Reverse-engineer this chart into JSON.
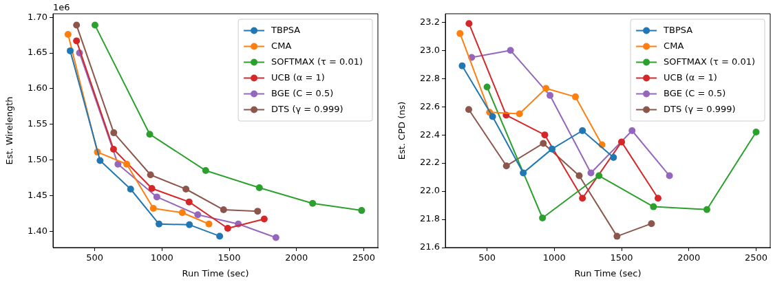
{
  "chart_data": [
    {
      "type": "line",
      "xlabel": "Run Time (sec)",
      "ylabel": "Est. Wirelength",
      "annotations": [
        "1e6"
      ],
      "xlim": [
        190,
        2605
      ],
      "xticks": [
        500,
        1000,
        1500,
        2000,
        2500
      ],
      "ylim": [
        1.377,
        1.705
      ],
      "yticks": [
        {
          "value": 1.4,
          "label": "1.40"
        },
        {
          "value": 1.45,
          "label": "1.45"
        },
        {
          "value": 1.5,
          "label": "1.50"
        },
        {
          "value": 1.55,
          "label": "1.55"
        },
        {
          "value": 1.6,
          "label": "1.60"
        },
        {
          "value": 1.65,
          "label": "1.65"
        },
        {
          "value": 1.7,
          "label": "1.70"
        }
      ],
      "grid": false,
      "legend": "top right",
      "marker": "circle",
      "line_style": "solid",
      "series": [
        {
          "name": "TBPSA",
          "color": "#1f77b4",
          "x": [
            318,
            540,
            767,
            978,
            1204,
            1429
          ],
          "values": [
            1.653,
            1.499,
            1.459,
            1.41,
            1.409,
            1.393
          ]
        },
        {
          "name": "CMA",
          "color": "#ff7f0e",
          "x": [
            302,
            520,
            738,
            936,
            1151,
            1349
          ],
          "values": [
            1.676,
            1.511,
            1.494,
            1.432,
            1.426,
            1.41
          ]
        },
        {
          "name": "SOFTMAX (τ = 0.01)",
          "color": "#2ca02c",
          "x": [
            502,
            909,
            1325,
            1724,
            2120,
            2484
          ],
          "values": [
            1.689,
            1.536,
            1.485,
            1.461,
            1.439,
            1.429
          ]
        },
        {
          "name": "UCB (α = 1)",
          "color": "#d62728",
          "x": [
            365,
            640,
            925,
            1202,
            1489,
            1760
          ],
          "values": [
            1.667,
            1.515,
            1.46,
            1.441,
            1.404,
            1.417
          ]
        },
        {
          "name": "BGE (C = 0.5)",
          "color": "#9467bd",
          "x": [
            387,
            673,
            962,
            1266,
            1567,
            1847
          ],
          "values": [
            1.65,
            1.494,
            1.448,
            1.423,
            1.41,
            1.391
          ]
        },
        {
          "name": "DTS (γ = 0.999)",
          "color": "#8c564b",
          "x": [
            365,
            642,
            915,
            1178,
            1458,
            1711
          ],
          "values": [
            1.689,
            1.538,
            1.479,
            1.459,
            1.43,
            1.428
          ]
        }
      ]
    },
    {
      "type": "line",
      "xlabel": "Run Time (sec)",
      "ylabel": "Est. CPD (ns)",
      "xlim": [
        190,
        2605
      ],
      "xticks": [
        500,
        1000,
        1500,
        2000,
        2500
      ],
      "ylim": [
        21.6,
        23.26
      ],
      "yticks": [
        {
          "value": 21.6,
          "label": "21.6"
        },
        {
          "value": 21.8,
          "label": "21.8"
        },
        {
          "value": 22,
          "label": "22.0"
        },
        {
          "value": 22.2,
          "label": "22.2"
        },
        {
          "value": 22.4,
          "label": "22.4"
        },
        {
          "value": 22.6,
          "label": "22.6"
        },
        {
          "value": 22.8,
          "label": "22.8"
        },
        {
          "value": 23,
          "label": "23.0"
        },
        {
          "value": 23.2,
          "label": "23.2"
        }
      ],
      "grid": false,
      "legend": "top right",
      "marker": "circle",
      "line_style": "solid",
      "series": [
        {
          "name": "TBPSA",
          "color": "#1f77b4",
          "x": [
            315,
            541,
            769,
            983,
            1209,
            1440
          ],
          "values": [
            22.89,
            22.53,
            22.13,
            22.3,
            22.43,
            22.24
          ]
        },
        {
          "name": "CMA",
          "color": "#ff7f0e",
          "x": [
            299,
            519,
            741,
            938,
            1157,
            1354
          ],
          "values": [
            23.12,
            22.56,
            22.55,
            22.73,
            22.67,
            22.33
          ]
        },
        {
          "name": "SOFTMAX (τ = 0.01)",
          "color": "#2ca02c",
          "x": [
            500,
            912,
            1332,
            1737,
            2134,
            2500
          ],
          "values": [
            22.74,
            21.81,
            22.11,
            21.89,
            21.87,
            22.42
          ]
        },
        {
          "name": "UCB (α = 1)",
          "color": "#d62728",
          "x": [
            366,
            642,
            929,
            1209,
            1500,
            1771
          ],
          "values": [
            23.19,
            22.54,
            22.4,
            21.95,
            22.35,
            21.95
          ]
        },
        {
          "name": "BGE (C = 0.5)",
          "color": "#9467bd",
          "x": [
            386,
            674,
            968,
            1272,
            1578,
            1856
          ],
          "values": [
            22.95,
            23.0,
            22.68,
            22.13,
            22.43,
            22.11
          ]
        },
        {
          "name": "DTS (γ = 0.999)",
          "color": "#8c564b",
          "x": [
            364,
            644,
            918,
            1185,
            1466,
            1722
          ],
          "values": [
            22.58,
            22.18,
            22.34,
            22.11,
            21.68,
            21.77
          ]
        }
      ]
    }
  ]
}
